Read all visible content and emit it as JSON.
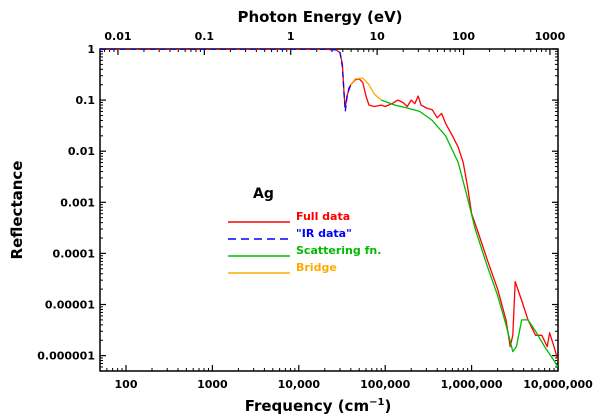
{
  "chart_data": {
    "type": "line",
    "bottom_axis": {
      "label": "Frequency (cm",
      "label_unit_sup": "−1",
      "label_close": ")",
      "scale": "log",
      "range": [
        50,
        10000000
      ],
      "ticks": [
        {
          "value": 100,
          "label": "100"
        },
        {
          "value": 1000,
          "label": "1000"
        },
        {
          "value": 10000,
          "label": "10,000"
        },
        {
          "value": 100000,
          "label": "100,000"
        },
        {
          "value": 1000000,
          "label": "1,000,000"
        },
        {
          "value": 10000000,
          "label": "10,000,000"
        }
      ]
    },
    "top_axis": {
      "label": "Photon Energy (eV)",
      "scale": "log",
      "range": [
        0.0062,
        1240
      ],
      "ticks": [
        {
          "value": 0.01,
          "label": "0.01"
        },
        {
          "value": 0.1,
          "label": "0.1"
        },
        {
          "value": 1,
          "label": "1"
        },
        {
          "value": 10,
          "label": "10"
        },
        {
          "value": 100,
          "label": "100"
        },
        {
          "value": 1000,
          "label": "1000"
        }
      ]
    },
    "left_axis": {
      "label": "Reflectance",
      "scale": "log",
      "range": [
        5e-07,
        1
      ],
      "ticks": [
        {
          "value": 1,
          "label": "1"
        },
        {
          "value": 0.1,
          "label": "0.1"
        },
        {
          "value": 0.01,
          "label": "0.01"
        },
        {
          "value": 0.001,
          "label": "0.001"
        },
        {
          "value": 0.0001,
          "label": "0.0001"
        },
        {
          "value": 1e-05,
          "label": "0.00001"
        },
        {
          "value": 1e-06,
          "label": "0.000001"
        }
      ]
    },
    "element_label": "Ag",
    "series": [
      {
        "name": "Full data",
        "color": "#ff0000",
        "dash": "none",
        "points": [
          [
            50,
            0.99
          ],
          [
            1000,
            0.99
          ],
          [
            10000,
            0.99
          ],
          [
            20000,
            0.985
          ],
          [
            27000,
            0.96
          ],
          [
            30000,
            0.85
          ],
          [
            32000,
            0.5
          ],
          [
            33500,
            0.12
          ],
          [
            34500,
            0.07
          ],
          [
            36000,
            0.12
          ],
          [
            40000,
            0.2
          ],
          [
            45000,
            0.25
          ],
          [
            50000,
            0.26
          ],
          [
            55000,
            0.22
          ],
          [
            60000,
            0.12
          ],
          [
            65000,
            0.08
          ],
          [
            75000,
            0.075
          ],
          [
            90000,
            0.08
          ],
          [
            100000,
            0.075
          ],
          [
            120000,
            0.085
          ],
          [
            140000,
            0.1
          ],
          [
            160000,
            0.09
          ],
          [
            180000,
            0.075
          ],
          [
            200000,
            0.1
          ],
          [
            220000,
            0.085
          ],
          [
            240000,
            0.12
          ],
          [
            260000,
            0.08
          ],
          [
            300000,
            0.07
          ],
          [
            350000,
            0.065
          ],
          [
            400000,
            0.045
          ],
          [
            450000,
            0.055
          ],
          [
            500000,
            0.035
          ],
          [
            600000,
            0.02
          ],
          [
            700000,
            0.012
          ],
          [
            800000,
            0.006
          ],
          [
            900000,
            0.002
          ],
          [
            1000000,
            0.0006
          ],
          [
            1200000,
            0.00025
          ],
          [
            1500000,
            8e-05
          ],
          [
            2000000,
            2e-05
          ],
          [
            2500000,
            5e-06
          ],
          [
            2800000,
            1.5e-06
          ],
          [
            3000000,
            2.5e-06
          ],
          [
            3200000,
            2.8e-05
          ],
          [
            3800000,
            1.2e-05
          ],
          [
            4500000,
            5e-06
          ],
          [
            5500000,
            2.5e-06
          ],
          [
            6500000,
            2.5e-06
          ],
          [
            7500000,
            1.5e-06
          ],
          [
            8000000,
            2.8e-06
          ],
          [
            9000000,
            1.5e-06
          ],
          [
            10000000,
            8e-07
          ]
        ]
      },
      {
        "name": "\"IR data\"",
        "color": "#0000ff",
        "dash": "6,4",
        "points": [
          [
            50,
            0.99
          ],
          [
            1000,
            0.99
          ],
          [
            10000,
            0.99
          ],
          [
            20000,
            0.985
          ],
          [
            27000,
            0.96
          ],
          [
            30000,
            0.85
          ],
          [
            32000,
            0.45
          ],
          [
            33500,
            0.12
          ],
          [
            34500,
            0.06
          ],
          [
            36000,
            0.11
          ],
          [
            38000,
            0.17
          ],
          [
            40000,
            0.2
          ]
        ]
      },
      {
        "name": "Scattering fn.",
        "color": "#00bb00",
        "dash": "none",
        "points": [
          [
            90000,
            0.1
          ],
          [
            130000,
            0.08
          ],
          [
            180000,
            0.07
          ],
          [
            250000,
            0.06
          ],
          [
            350000,
            0.04
          ],
          [
            500000,
            0.02
          ],
          [
            700000,
            0.006
          ],
          [
            900000,
            0.0012
          ],
          [
            1100000,
            0.0003
          ],
          [
            1500000,
            6e-05
          ],
          [
            2000000,
            1.5e-05
          ],
          [
            2500000,
            4e-06
          ],
          [
            3000000,
            1.2e-06
          ],
          [
            3300000,
            1.5e-06
          ],
          [
            3800000,
            5e-06
          ],
          [
            4500000,
            5e-06
          ],
          [
            5500000,
            3e-06
          ],
          [
            7000000,
            1.5e-06
          ],
          [
            9000000,
            8e-07
          ],
          [
            10000000,
            6e-07
          ]
        ]
      },
      {
        "name": "Bridge",
        "color": "#ffaa00",
        "dash": "none",
        "points": [
          [
            40000,
            0.2
          ],
          [
            45000,
            0.26
          ],
          [
            55000,
            0.27
          ],
          [
            65000,
            0.2
          ],
          [
            75000,
            0.13
          ],
          [
            90000,
            0.1
          ]
        ]
      }
    ]
  }
}
